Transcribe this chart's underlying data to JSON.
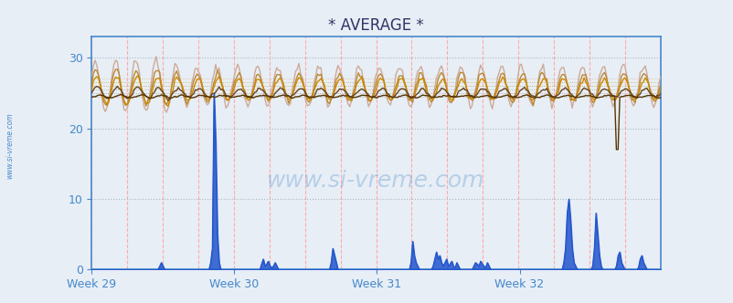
{
  "title": "* AVERAGE *",
  "bg_color": "#e8eef5",
  "plot_bg_color": "#e8eef5",
  "ylim": [
    0,
    33
  ],
  "yticks": [
    0,
    10,
    20,
    30
  ],
  "xlabel_color": "#4488cc",
  "ylabel_color": "#4488cc",
  "axis_color": "#4488cc",
  "week_labels": [
    "Week 29",
    "Week 30",
    "Week 31",
    "Week 32"
  ],
  "n_points": 336,
  "soil_colors": [
    "#ccaa99",
    "#bb8833",
    "#cc8800",
    "#664422",
    "#553300"
  ],
  "precip_color": "#2255cc"
}
